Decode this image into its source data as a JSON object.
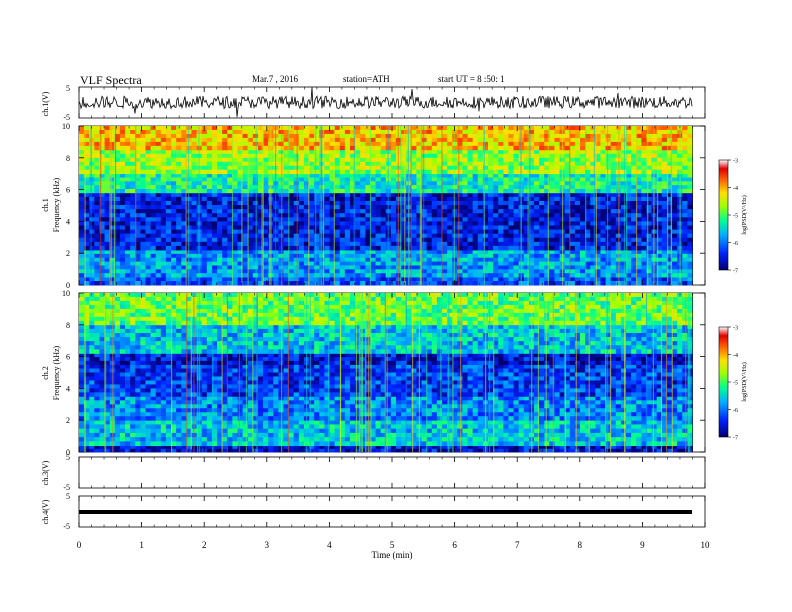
{
  "header": {
    "title": "VLF Spectra",
    "date": "Mar.7 , 2016",
    "station": "station=ATH",
    "start": "start UT = 8 :50: 1"
  },
  "colors": {
    "spectrogram_low": "#1a0080",
    "spectrogram_mid": "#00c8ff",
    "spectrogram_high": "#e00000",
    "trace": "#000000"
  },
  "chart_data": [
    {
      "type": "line",
      "panel": "ch1-waveform",
      "ylabel": "ch.1(V)",
      "ylim": [
        -5,
        5
      ],
      "yticks": [
        "5",
        "-5"
      ],
      "xlim": [
        0,
        10
      ],
      "series": [
        {
          "values_mean": 0.1,
          "noise_amplitude": 0.4,
          "spikes": true
        }
      ]
    },
    {
      "type": "heatmap",
      "panel": "ch1-spectrogram",
      "ylabel": "ch.1 Frequency (kHz)",
      "ylim": [
        0,
        10
      ],
      "yticks": [
        "0",
        "2",
        "4",
        "6",
        "8",
        "10"
      ],
      "xlim": [
        0,
        9.8
      ],
      "colorbar": {
        "label": "log(PSD(V²/Hz)",
        "range": [
          -7,
          -3
        ],
        "ticks": [
          "-3",
          "-4",
          "-5",
          "-6",
          "-7"
        ]
      },
      "bands": [
        {
          "from": 0,
          "to": 0.5,
          "level": -6.2
        },
        {
          "from": 0.5,
          "to": 2.2,
          "level": -5.8
        },
        {
          "from": 2.2,
          "to": 5.8,
          "level": -6.5
        },
        {
          "from": 5.8,
          "to": 7.0,
          "level": -5.3
        },
        {
          "from": 7.0,
          "to": 8.5,
          "level": -4.7
        },
        {
          "from": 8.5,
          "to": 10,
          "level": -4.1
        }
      ]
    },
    {
      "type": "heatmap",
      "panel": "ch2-spectrogram",
      "ylabel": "ch.2 Frequency (kHz)",
      "ylim": [
        0,
        10
      ],
      "yticks": [
        "0",
        "2",
        "4",
        "6",
        "8",
        "10"
      ],
      "xlim": [
        0,
        9.8
      ],
      "colorbar": {
        "label": "log(PSD(V²/Hz)",
        "range": [
          -7,
          -3
        ],
        "ticks": [
          "-3",
          "-4",
          "-5",
          "-6",
          "-7"
        ]
      },
      "bands": [
        {
          "from": 0,
          "to": 0.4,
          "level": -6.6
        },
        {
          "from": 0.4,
          "to": 2.0,
          "level": -5.6
        },
        {
          "from": 2.0,
          "to": 3.5,
          "level": -5.9
        },
        {
          "from": 3.5,
          "to": 5.5,
          "level": -6.3
        },
        {
          "from": 5.5,
          "to": 6.2,
          "level": -6.6
        },
        {
          "from": 6.2,
          "to": 8.0,
          "level": -5.6
        },
        {
          "from": 8.0,
          "to": 10,
          "level": -4.9
        }
      ]
    },
    {
      "type": "line",
      "panel": "ch3-waveform",
      "ylabel": "ch.3(V)",
      "ylim": [
        -5,
        5
      ],
      "yticks": [
        "5",
        "-5"
      ],
      "series": []
    },
    {
      "type": "line",
      "panel": "ch4-waveform",
      "ylabel": "ch.4(V)",
      "ylim": [
        -5,
        5
      ],
      "yticks": [
        "5",
        "-5"
      ],
      "series": [
        {
          "values_mean": 0,
          "constant": true
        }
      ]
    }
  ],
  "xaxis": {
    "label": "Time (min)",
    "ticks": [
      "0",
      "1",
      "2",
      "3",
      "4",
      "5",
      "6",
      "7",
      "8",
      "9",
      "10"
    ],
    "range": [
      0,
      10
    ]
  }
}
